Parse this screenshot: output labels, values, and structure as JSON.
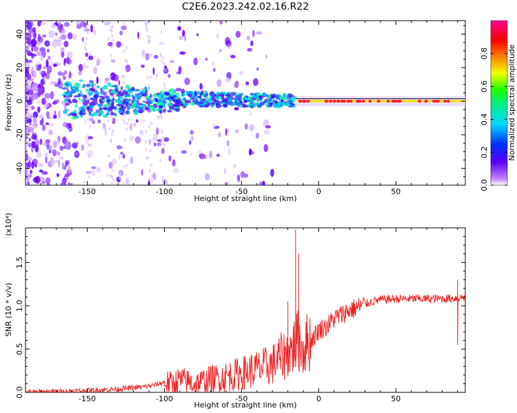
{
  "title": "C2E6.2023.242.02.16.R22",
  "colors": {
    "snr_line": "#ee2222",
    "zero_line": "#000000"
  },
  "chart_data": [
    {
      "type": "heatmap",
      "xlabel": "Height of straight line (km)",
      "ylabel": "Frequency (Hz)",
      "xlim": [
        -190,
        95
      ],
      "ylim": [
        -50,
        48
      ],
      "xticks": [
        -150,
        -100,
        -50,
        0,
        50
      ],
      "xtick_labels": [
        "-150",
        "-100",
        "-50",
        "0",
        "50"
      ],
      "yticks": [
        -40,
        -20,
        0,
        20,
        40
      ],
      "ytick_labels": [
        "-40",
        "-20",
        "0",
        "20",
        "40"
      ],
      "colorbar": {
        "label": "Normalized spectral amplitude",
        "range": [
          0,
          1
        ],
        "ticks": [
          0.0,
          0.2,
          0.4,
          0.6,
          0.8
        ],
        "tick_labels": [
          "0.0",
          "0.2",
          "0.4",
          "0.6",
          "0.8"
        ],
        "colormap": "rainbow (white-purple-blue-cyan-green-yellow-red-pink)"
      },
      "features": [
        {
          "segment": "x from -190 to -160",
          "description": "broad scattered purple noise across full frequency range"
        },
        {
          "segment": "x from -160 to -15",
          "description": "carrier band near 0 Hz, blue/cyan/green, slowly converging toward 0 as height increases"
        },
        {
          "segment": "x from -15 to 95",
          "description": "narrow high amplitude line at 0 Hz, red/yellow"
        }
      ]
    },
    {
      "type": "line",
      "xlabel": "Height of straight line (km)",
      "ylabel": "SNR (10 * v/v)",
      "y_multiplier": "(x10⁴)",
      "xlim": [
        -190,
        95
      ],
      "ylim": [
        0,
        1.9
      ],
      "xticks": [
        -150,
        -100,
        -50,
        0,
        50
      ],
      "xtick_labels": [
        "-150",
        "-100",
        "-50",
        "0",
        "50"
      ],
      "yticks": [
        0.0,
        0.5,
        1.0,
        1.5
      ],
      "ytick_labels": [
        "0.0",
        "0.5",
        "1.0",
        "1.5"
      ],
      "series": [
        {
          "x": [
            -190,
            -170,
            -150,
            -130,
            -115,
            -105,
            -100,
            -95,
            -90,
            -80,
            -70,
            -60,
            -50,
            -40,
            -30,
            -25,
            -20,
            -17,
            -15,
            -13,
            -12,
            -10,
            -8,
            -5,
            0,
            5,
            10,
            15,
            20,
            25,
            30,
            35,
            40,
            50,
            60,
            70,
            80,
            90,
            95
          ],
          "y": [
            0.0,
            0.01,
            0.02,
            0.04,
            0.06,
            0.09,
            0.12,
            0.1,
            0.14,
            0.1,
            0.15,
            0.18,
            0.22,
            0.27,
            0.32,
            0.4,
            0.45,
            0.5,
            0.58,
            0.6,
            0.55,
            0.5,
            0.57,
            0.6,
            0.72,
            0.76,
            0.85,
            0.9,
            0.95,
            0.98,
            1.02,
            1.05,
            1.07,
            1.08,
            1.08,
            1.08,
            1.08,
            1.09,
            1.1
          ],
          "spikes": [
            {
              "x": -15,
              "y": 1.88
            },
            {
              "x": -13,
              "y": 1.6
            },
            {
              "x": -20,
              "y": 1.05
            },
            {
              "x": 90,
              "y": 1.3
            }
          ]
        }
      ]
    }
  ]
}
